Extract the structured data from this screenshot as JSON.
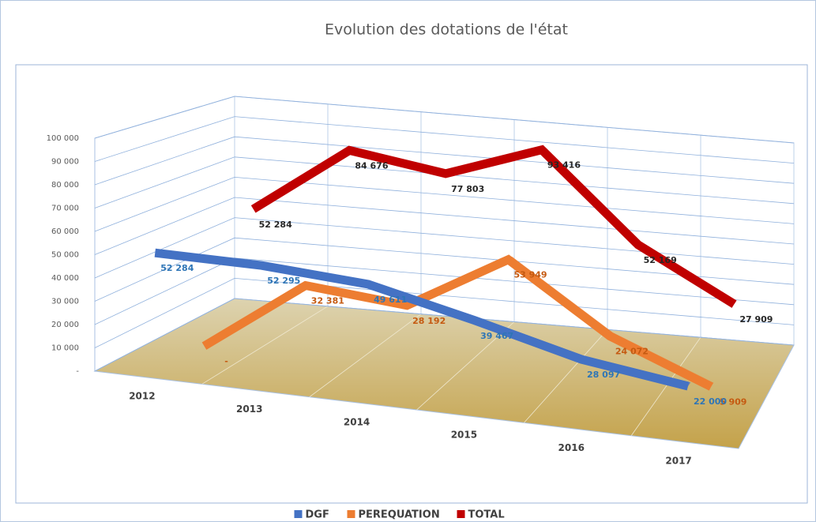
{
  "chart_data": {
    "type": "line3d",
    "title": "Evolution des dotations de l'état",
    "categories": [
      "2012",
      "2013",
      "2014",
      "2015",
      "2016",
      "2017"
    ],
    "series": [
      {
        "name": "DGF",
        "color": "#4472c4",
        "label_color": "#2e75b6",
        "values": [
          52284,
          52295,
          49611,
          39467,
          28097,
          22000
        ],
        "value_labels": [
          "52 284",
          "52 295",
          "49 611",
          "39 467",
          "28 097",
          "22 000"
        ]
      },
      {
        "name": "PEREQUATION",
        "color": "#ed7d31",
        "label_color": "#c55a11",
        "values": [
          0,
          32381,
          28192,
          53949,
          24072,
          5909
        ],
        "value_labels": [
          "-",
          "32 381",
          "28 192",
          "53 949",
          "24 072",
          "5 909"
        ]
      },
      {
        "name": "TOTAL",
        "color": "#c00000",
        "label_color": "#262626",
        "values": [
          52284,
          84676,
          77803,
          93416,
          52169,
          27909
        ],
        "value_labels": [
          "52 284",
          "84 676",
          "77 803",
          "93 416",
          "52 169",
          "27 909"
        ]
      }
    ],
    "ylim": [
      0,
      100000
    ],
    "yticks": [
      {
        "value": 0,
        "label": "-"
      },
      {
        "value": 10000,
        "label": "10 000"
      },
      {
        "value": 20000,
        "label": "20 000"
      },
      {
        "value": 30000,
        "label": "30 000"
      },
      {
        "value": 40000,
        "label": "40 000"
      },
      {
        "value": 50000,
        "label": "50 000"
      },
      {
        "value": 60000,
        "label": "60 000"
      },
      {
        "value": 70000,
        "label": "70 000"
      },
      {
        "value": 80000,
        "label": "80 000"
      },
      {
        "value": 90000,
        "label": "90 000"
      },
      {
        "value": 100000,
        "label": "100 000"
      }
    ],
    "grid": true,
    "legend": "bottom"
  }
}
